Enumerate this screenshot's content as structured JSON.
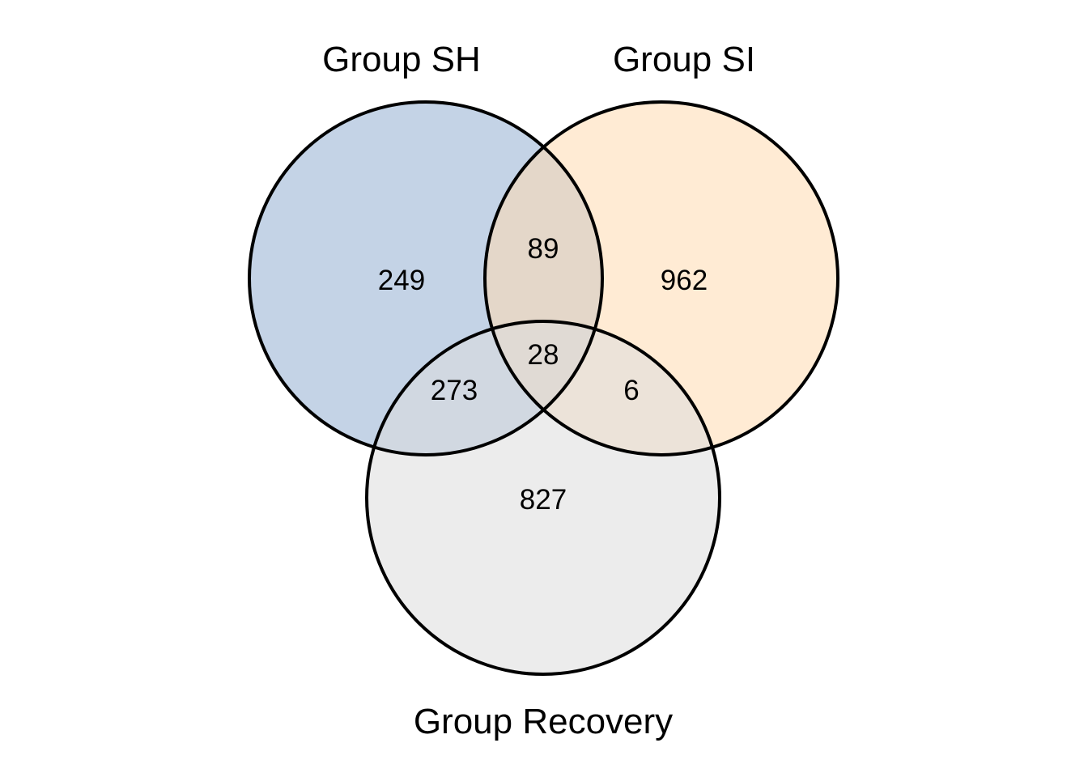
{
  "sets": [
    {
      "id": "sh",
      "label": "Group SH",
      "color": "#B0C4DE"
    },
    {
      "id": "si",
      "label": "Group SI",
      "color": "#FFDAB0"
    },
    {
      "id": "recovery",
      "label": "Group Recovery",
      "color": "#DCDCDC"
    }
  ],
  "regions": {
    "sh_only": "249",
    "si_only": "962",
    "recovery_only": "827",
    "sh_si": "89",
    "sh_recovery": "273",
    "si_recovery": "6",
    "all": "28"
  }
}
